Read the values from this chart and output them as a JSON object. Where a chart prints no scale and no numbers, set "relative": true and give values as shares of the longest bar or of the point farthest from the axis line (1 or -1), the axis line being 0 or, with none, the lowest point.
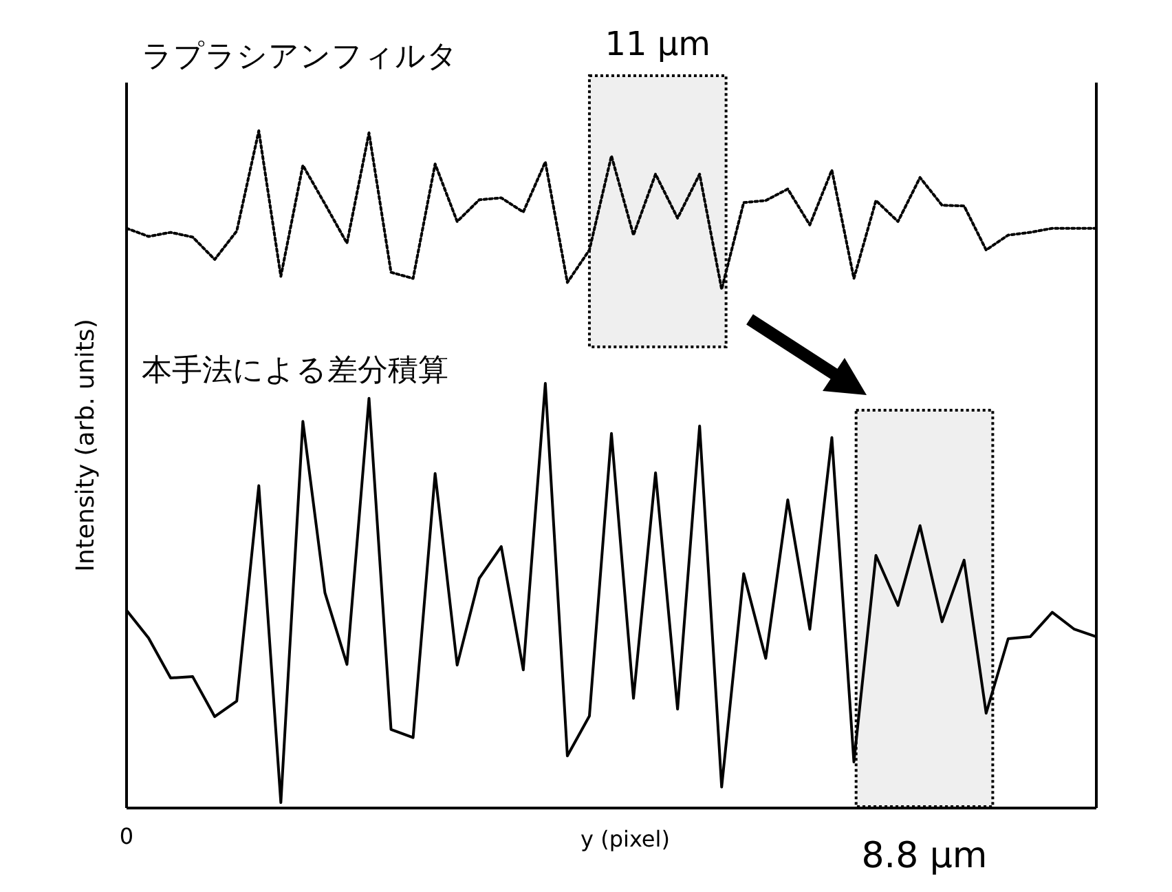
{
  "chart_data": {
    "type": "line",
    "relative": true,
    "xlabel": "y (pixel)",
    "ylabel": "Intensity (arb. units)",
    "categories": [
      null,
      null,
      null,
      null,
      null,
      null,
      null,
      null,
      null,
      null,
      null,
      null,
      null,
      null,
      null,
      null,
      null,
      null,
      null,
      null,
      null,
      null,
      null,
      null,
      null,
      null,
      null,
      null,
      null,
      null,
      null,
      null,
      null,
      null,
      null,
      null,
      null,
      null,
      null,
      null,
      null,
      null,
      null,
      null,
      null
    ],
    "series": [
      {
        "name": "ラプラシアンフィルタ",
        "color": "#000000",
        "line_style": "dotted",
        "values": [
          0.856,
          0.844,
          0.85,
          0.843,
          0.81,
          0.852,
          1.0,
          0.785,
          0.949,
          0.892,
          0.834,
          0.997,
          0.791,
          0.782,
          0.951,
          0.866,
          0.898,
          0.901,
          0.88,
          0.954,
          0.776,
          0.824,
          0.963,
          0.846,
          0.936,
          0.871,
          0.936,
          0.766,
          0.894,
          0.897,
          0.914,
          0.861,
          0.942,
          0.782,
          0.897,
          0.866,
          0.931,
          0.89,
          0.889,
          0.824,
          0.846,
          0.85,
          0.856,
          0.856,
          0.856
        ]
      },
      {
        "name": "本手法による差分積算",
        "color": "#000000",
        "line_style": "solid",
        "values": [
          0.292,
          0.251,
          0.192,
          0.194,
          0.135,
          0.158,
          0.476,
          0.008,
          0.571,
          0.318,
          0.212,
          0.605,
          0.116,
          0.104,
          0.494,
          0.211,
          0.339,
          0.386,
          0.204,
          0.627,
          0.077,
          0.136,
          0.553,
          0.162,
          0.495,
          0.146,
          0.564,
          0.031,
          0.346,
          0.221,
          0.455,
          0.264,
          0.547,
          0.068,
          0.373,
          0.299,
          0.417,
          0.275,
          0.366,
          0.14,
          0.25,
          0.253,
          0.289,
          0.264,
          0.253
        ]
      }
    ],
    "annotations": [
      "11 μm",
      "8.8 μm",
      "0"
    ]
  }
}
